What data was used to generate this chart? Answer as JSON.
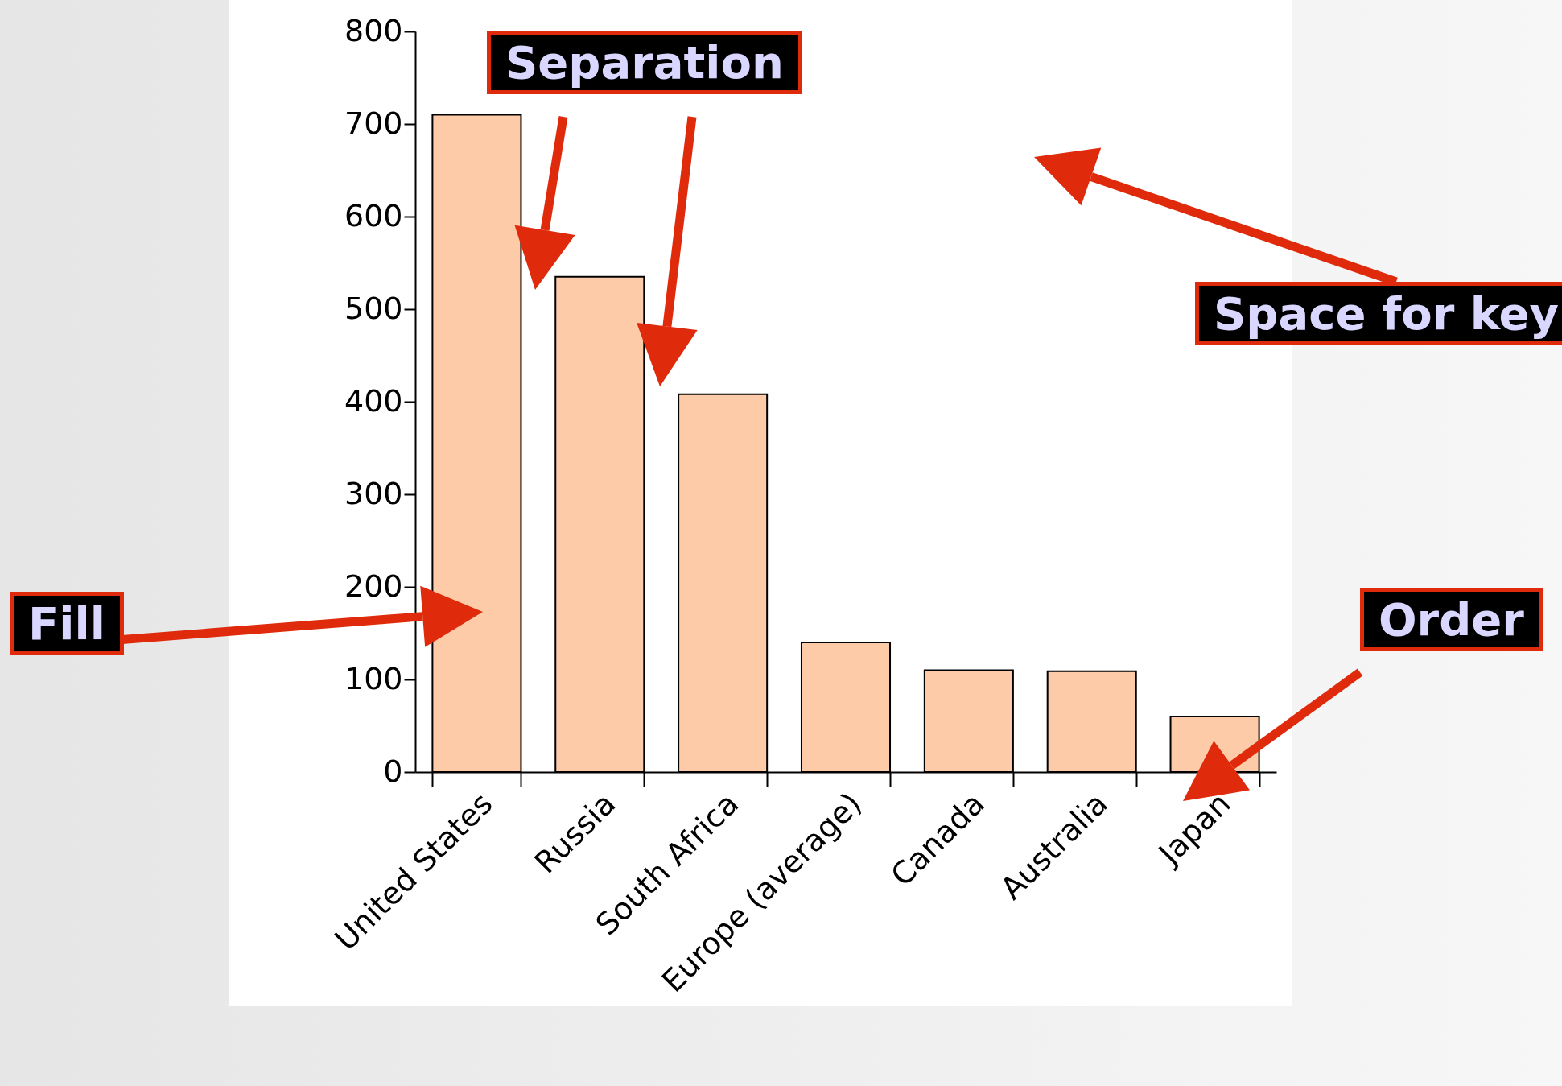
{
  "chart_data": {
    "type": "bar",
    "categories": [
      "United States",
      "Russia",
      "South Africa",
      "Europe (average)",
      "Canada",
      "Australia",
      "Japan"
    ],
    "values": [
      710,
      535,
      408,
      140,
      110,
      109,
      60
    ],
    "color": "#fdcba8",
    "ylim": [
      0,
      800
    ],
    "yticks": [
      0,
      100,
      200,
      300,
      400,
      500,
      600,
      700,
      800
    ],
    "grid": false,
    "annotations": [
      "Separation",
      "Space for key",
      "Fill",
      "Order"
    ]
  }
}
